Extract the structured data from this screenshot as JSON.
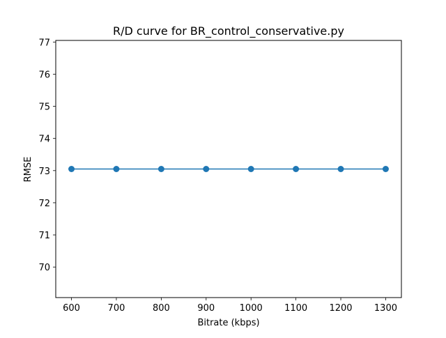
{
  "chart_data": {
    "type": "line",
    "title": "R/D curve for BR_control_conservative.py",
    "xlabel": "Bitrate (kbps)",
    "ylabel": "RMSE",
    "x": [
      600,
      700,
      800,
      900,
      1000,
      1100,
      1200,
      1300
    ],
    "series": [
      {
        "values": [
          73.05,
          73.05,
          73.05,
          73.05,
          73.05,
          73.05,
          73.05,
          73.05
        ],
        "color": "#1f77b4",
        "marker": "circle"
      }
    ],
    "xlim": [
      565,
      1335
    ],
    "ylim": [
      69.05,
      77.05
    ],
    "xticks": [
      600,
      700,
      800,
      900,
      1000,
      1100,
      1200,
      1300
    ],
    "yticks": [
      70,
      71,
      72,
      73,
      74,
      75,
      76,
      77
    ],
    "grid": false,
    "legend": "none"
  }
}
